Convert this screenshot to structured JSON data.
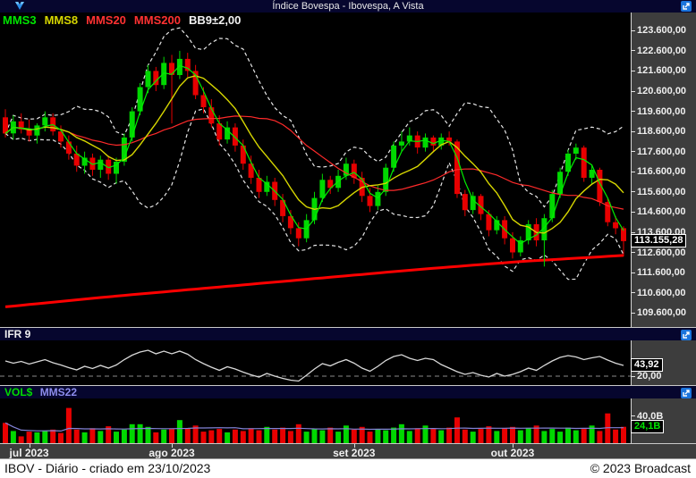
{
  "titlebar": {
    "title": "Índice Bovespa - Ibovespa, A Vista"
  },
  "legend": {
    "items": [
      {
        "label": "MMS3",
        "color": "#00e600"
      },
      {
        "label": "MMS8",
        "color": "#d6d600"
      },
      {
        "label": "MMS20",
        "color": "#ff3232"
      },
      {
        "label": "MMS200",
        "color": "#ff3232"
      },
      {
        "label": "BB9±2,00",
        "color": "#f2f2f2"
      }
    ]
  },
  "main_axis": {
    "price_label": "113.155,28",
    "ticks": [
      {
        "value": 123600,
        "label": "123.600,00"
      },
      {
        "value": 122600,
        "label": "122.600,00"
      },
      {
        "value": 121600,
        "label": "121.600,00"
      },
      {
        "value": 120600,
        "label": "120.600,00"
      },
      {
        "value": 119600,
        "label": "119.600,00"
      },
      {
        "value": 118600,
        "label": "118.600,00"
      },
      {
        "value": 117600,
        "label": "117.600,00"
      },
      {
        "value": 116600,
        "label": "116.600,00"
      },
      {
        "value": 115600,
        "label": "115.600,00"
      },
      {
        "value": 114600,
        "label": "114.600,00"
      },
      {
        "value": 113600,
        "label": "113.600,00"
      },
      {
        "value": 112600,
        "label": "112.600,00"
      },
      {
        "value": 111600,
        "label": "111.600,00"
      },
      {
        "value": 110600,
        "label": "110.600,00"
      },
      {
        "value": 109600,
        "label": "109.600,00"
      }
    ]
  },
  "ifr_panel": {
    "title": "IFR 9",
    "current_label": "43,92",
    "current_value": 43.92,
    "level_label": "20,00",
    "level_value": 20
  },
  "vol_panel": {
    "title": "VOL$",
    "ma_label": "MMS22",
    "tick_label": "40,0B",
    "tick_value": 40,
    "current_label": "24,1B",
    "current_value": 24.1
  },
  "xaxis": {
    "months": [
      {
        "label": "jul 2023",
        "day": 3
      },
      {
        "label": "ago 2023",
        "day": 21
      },
      {
        "label": "set 2023",
        "day": 44
      },
      {
        "label": "out 2023",
        "day": 64
      }
    ]
  },
  "statusbar": {
    "left": "IBOV - Diário - criado em 23/10/2023",
    "right": "© 2023 Broadcast"
  },
  "chart_data": {
    "type": "candlestick",
    "title": "Índice Bovespa - Ibovespa, A Vista",
    "symbol": "IBOV",
    "period": "Diário",
    "created": "23/10/2023",
    "y_range": [
      108900,
      124500
    ],
    "last_price": 113155.28,
    "colors": {
      "up": "#00d800",
      "down": "#e80000",
      "mms3": "#00ee00",
      "mms8": "#d6d600",
      "mms20": "#ff2a2a",
      "mms200": "#ff0000",
      "bollinger": "#e6e6e6",
      "ifr_line": "#d8d8d8",
      "ifr_level": "#8a8a8a",
      "vol_ma": "#8282d6"
    },
    "indicators": {
      "mms_periods": [
        3,
        8,
        20,
        200
      ],
      "bollinger": {
        "period": 9,
        "k": 2
      },
      "ifr_period": 9,
      "vol_mms_period": 22
    },
    "mms200_points": [
      109900,
      110400,
      110850,
      111300,
      111750,
      112150,
      112450
    ],
    "candles": [
      [
        119300,
        119700,
        118300,
        118500
      ],
      [
        118500,
        119400,
        118200,
        119100
      ],
      [
        119100,
        119500,
        118500,
        118700
      ],
      [
        118700,
        119200,
        118100,
        118400
      ],
      [
        118400,
        119000,
        118000,
        118900
      ],
      [
        118900,
        119600,
        118600,
        119300
      ],
      [
        119300,
        119500,
        118400,
        118600
      ],
      [
        118600,
        118900,
        117800,
        118100
      ],
      [
        118100,
        118400,
        117200,
        117500
      ],
      [
        117500,
        117900,
        116600,
        116900
      ],
      [
        116900,
        117600,
        116500,
        117300
      ],
      [
        117300,
        117500,
        116400,
        116700
      ],
      [
        116700,
        117400,
        116300,
        117200
      ],
      [
        117200,
        117400,
        116200,
        116500
      ],
      [
        116500,
        117300,
        116000,
        117100
      ],
      [
        117100,
        118500,
        116900,
        118300
      ],
      [
        118300,
        119800,
        118100,
        119600
      ],
      [
        119600,
        121000,
        119400,
        120800
      ],
      [
        120800,
        121900,
        120500,
        121600
      ],
      [
        121600,
        121800,
        120600,
        120900
      ],
      [
        120900,
        122300,
        120700,
        122000
      ],
      [
        122000,
        122400,
        119000,
        121400
      ],
      [
        121400,
        122600,
        121200,
        122200
      ],
      [
        122200,
        122500,
        121300,
        121600
      ],
      [
        121600,
        121900,
        120200,
        120400
      ],
      [
        120400,
        120800,
        119500,
        119800
      ],
      [
        119800,
        120200,
        118800,
        119000
      ],
      [
        119000,
        119400,
        117900,
        118200
      ],
      [
        118200,
        119100,
        118000,
        118800
      ],
      [
        118800,
        119000,
        117600,
        117900
      ],
      [
        117900,
        118200,
        116700,
        117000
      ],
      [
        117000,
        117400,
        116000,
        116300
      ],
      [
        116300,
        116700,
        115300,
        115600
      ],
      [
        115600,
        116400,
        115400,
        116100
      ],
      [
        116100,
        116300,
        114900,
        115200
      ],
      [
        115200,
        115500,
        114100,
        114400
      ],
      [
        114400,
        114700,
        113500,
        113800
      ],
      [
        113800,
        114100,
        112900,
        113300
      ],
      [
        113300,
        114500,
        113100,
        114200
      ],
      [
        114200,
        115600,
        114000,
        115300
      ],
      [
        115300,
        116500,
        115100,
        116200
      ],
      [
        116200,
        116400,
        115500,
        115800
      ],
      [
        115800,
        116700,
        115600,
        116400
      ],
      [
        116400,
        117300,
        116200,
        117000
      ],
      [
        117000,
        117200,
        116000,
        116300
      ],
      [
        116300,
        116600,
        115100,
        115400
      ],
      [
        115400,
        115800,
        114600,
        114900
      ],
      [
        114900,
        115900,
        114700,
        115600
      ],
      [
        115600,
        117000,
        115400,
        116800
      ],
      [
        116800,
        118100,
        116600,
        117900
      ],
      [
        117900,
        118600,
        117600,
        118100
      ],
      [
        118100,
        118800,
        117900,
        118400
      ],
      [
        118400,
        118600,
        117500,
        117800
      ],
      [
        117800,
        118500,
        117600,
        118300
      ],
      [
        118300,
        118400,
        117600,
        117900
      ],
      [
        117900,
        118500,
        117700,
        118300
      ],
      [
        118300,
        118600,
        117900,
        118100
      ],
      [
        118100,
        118200,
        115300,
        115500
      ],
      [
        115500,
        115700,
        114400,
        114700
      ],
      [
        114700,
        115600,
        114500,
        115400
      ],
      [
        115400,
        115500,
        114200,
        114500
      ],
      [
        114500,
        114700,
        113400,
        113700
      ],
      [
        113700,
        114400,
        113500,
        114200
      ],
      [
        114200,
        114400,
        113000,
        113300
      ],
      [
        113300,
        113600,
        112300,
        112600
      ],
      [
        112600,
        113400,
        112400,
        113200
      ],
      [
        113200,
        114200,
        113000,
        114000
      ],
      [
        114000,
        114300,
        112900,
        113200
      ],
      [
        113200,
        114500,
        111900,
        114300
      ],
      [
        114300,
        115700,
        114100,
        115500
      ],
      [
        115500,
        116800,
        115300,
        116600
      ],
      [
        116600,
        117700,
        116400,
        117500
      ],
      [
        117500,
        118000,
        117200,
        117800
      ],
      [
        117800,
        117900,
        116100,
        116300
      ],
      [
        116300,
        116900,
        116000,
        116700
      ],
      [
        116700,
        116800,
        114900,
        115100
      ],
      [
        115100,
        115300,
        113900,
        114100
      ],
      [
        114100,
        114400,
        113500,
        113800
      ],
      [
        113800,
        113900,
        112400,
        113155.28
      ]
    ],
    "ifr9": {
      "oversold_level": 20,
      "current": 43.92,
      "values": [
        54,
        49,
        53,
        47,
        52,
        57,
        50,
        45,
        39,
        34,
        42,
        37,
        44,
        38,
        45,
        57,
        67,
        74,
        78,
        70,
        76,
        70,
        76,
        69,
        57,
        48,
        40,
        33,
        41,
        36,
        29,
        23,
        18,
        26,
        20,
        15,
        11,
        9,
        22,
        36,
        48,
        43,
        51,
        57,
        49,
        38,
        31,
        42,
        55,
        64,
        68,
        60,
        55,
        60,
        57,
        46,
        38,
        30,
        24,
        28,
        22,
        18,
        26,
        20,
        24,
        30,
        38,
        33,
        44,
        54,
        62,
        66,
        63,
        57,
        61,
        64,
        56,
        49,
        43.92
      ]
    },
    "volume": {
      "unit": "B",
      "axis_max": 66,
      "current": 24.1,
      "values": [
        30,
        18,
        10,
        17,
        16,
        18,
        20,
        15,
        52,
        20,
        16,
        22,
        18,
        25,
        17,
        20,
        28,
        28,
        24,
        16,
        20,
        21,
        34,
        22,
        26,
        17,
        19,
        21,
        16,
        20,
        18,
        22,
        19,
        24,
        20,
        23,
        18,
        28,
        17,
        21,
        19,
        23,
        17,
        26,
        20,
        24,
        17,
        21,
        19,
        23,
        28,
        18,
        22,
        26,
        21,
        19,
        23,
        38,
        20,
        17,
        21,
        25,
        18,
        22,
        24,
        19,
        22,
        26,
        18,
        21,
        17,
        23,
        19,
        21,
        26,
        18,
        44,
        20,
        24.1
      ]
    }
  }
}
